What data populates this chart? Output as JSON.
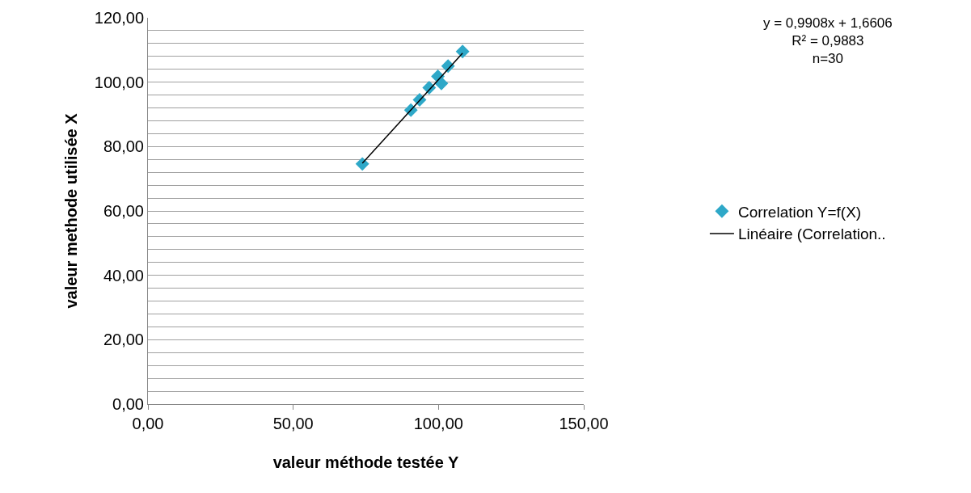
{
  "chart_data": {
    "type": "scatter",
    "xlabel": "valeur méthode testée Y",
    "ylabel": "valeur methode utilisée X",
    "annotations": [
      "y = 0,9908x + 1,6606\nR² = 0,9883\nn=30"
    ],
    "series": [
      {
        "name": "Correlation Y=f(X)",
        "color": "#2ea8c8",
        "marker": "diamond",
        "x": [
          73.8,
          90.5,
          93.5,
          96.8,
          99.8,
          103.3,
          101.0,
          108.3
        ],
        "values": [
          74.6,
          91.3,
          94.5,
          98.3,
          101.8,
          105.0,
          99.6,
          109.5
        ]
      },
      {
        "name": "Linéaire (Correlation..",
        "type": "line",
        "color": "#000000",
        "line_style": "solid",
        "x": [
          73.8,
          108.3
        ],
        "values": [
          74.8,
          109.0
        ]
      }
    ],
    "xlim": [
      0,
      150
    ],
    "xticks": [
      {
        "value": 0,
        "label": "0,00"
      },
      {
        "value": 50,
        "label": "50,00"
      },
      {
        "value": 100,
        "label": "100,00"
      },
      {
        "value": 150,
        "label": "150,00"
      }
    ],
    "ylim": [
      0,
      120
    ],
    "yticks": [
      {
        "value": 0,
        "label": "0,00"
      },
      {
        "value": 4,
        "label": null
      },
      {
        "value": 8,
        "label": null
      },
      {
        "value": 12,
        "label": null
      },
      {
        "value": 16,
        "label": null
      },
      {
        "value": 20,
        "label": "20,00"
      },
      {
        "value": 24,
        "label": null
      },
      {
        "value": 28,
        "label": null
      },
      {
        "value": 32,
        "label": null
      },
      {
        "value": 36,
        "label": null
      },
      {
        "value": 40,
        "label": "40,00"
      },
      {
        "value": 44,
        "label": null
      },
      {
        "value": 48,
        "label": null
      },
      {
        "value": 52,
        "label": null
      },
      {
        "value": 56,
        "label": null
      },
      {
        "value": 60,
        "label": "60,00"
      },
      {
        "value": 64,
        "label": null
      },
      {
        "value": 68,
        "label": null
      },
      {
        "value": 72,
        "label": null
      },
      {
        "value": 76,
        "label": null
      },
      {
        "value": 80,
        "label": "80,00"
      },
      {
        "value": 84,
        "label": null
      },
      {
        "value": 88,
        "label": null
      },
      {
        "value": 92,
        "label": null
      },
      {
        "value": 96,
        "label": null
      },
      {
        "value": 100,
        "label": "100,00"
      },
      {
        "value": 104,
        "label": null
      },
      {
        "value": 108,
        "label": null
      },
      {
        "value": 112,
        "label": null
      },
      {
        "value": 116,
        "label": null
      },
      {
        "value": 120,
        "label": "120,00"
      }
    ],
    "grid": "y",
    "legend": "right"
  }
}
